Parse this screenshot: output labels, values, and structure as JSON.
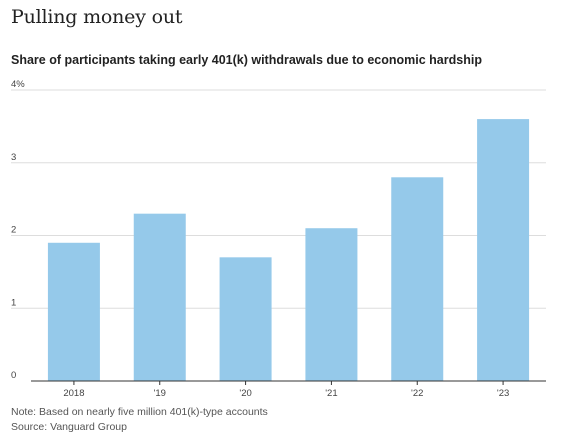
{
  "title": "Pulling money out",
  "subtitle": "Share of participants taking early 401(k) withdrawals due to economic hardship",
  "note": "Note: Based on nearly five million 401(k)-type accounts",
  "source": "Source: Vanguard Group",
  "colors": {
    "bar": "#95c9ea",
    "grid": "#dddddd",
    "axis": "#333333"
  },
  "chart_data": {
    "type": "bar",
    "categories": [
      "2018",
      "'19",
      "'20",
      "'21",
      "'22",
      "'23"
    ],
    "values": [
      1.9,
      2.3,
      1.7,
      2.1,
      2.8,
      3.6
    ],
    "y_tick_labels": [
      "0",
      "1",
      "2",
      "3",
      "4%"
    ],
    "y_ticks": [
      0,
      1,
      2,
      3,
      4
    ],
    "ylim": [
      0,
      4
    ],
    "grid": true,
    "legend": "none"
  }
}
